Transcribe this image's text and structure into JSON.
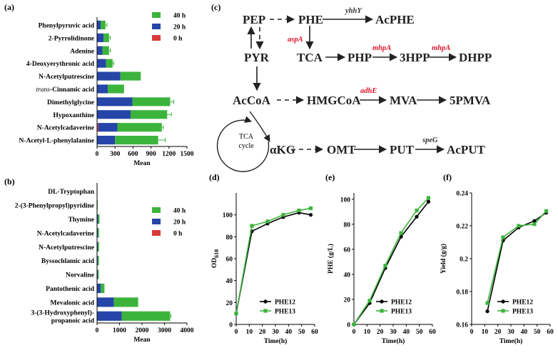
{
  "colors": {
    "c40": "#3cb43c",
    "c20": "#2545a8",
    "c0": "#d93a3a",
    "phe12": "#000000",
    "phe13": "#3cb43c",
    "red_gene": "#e0142a"
  },
  "panel_a": {
    "letter": "(a)",
    "xlabel": "Mean",
    "xticks": [
      0,
      300,
      600,
      900,
      1200,
      1500
    ],
    "xmax": 1500,
    "legend": [
      "40 h",
      "20 h",
      "0 h"
    ],
    "rows": [
      {
        "label": "Phenylpyruvic acid",
        "v0": 0,
        "v20": 60,
        "v40": 80,
        "err": 25
      },
      {
        "label": "2-Pyrrolidinone",
        "v0": 0,
        "v20": 110,
        "v40": 90,
        "err": 20
      },
      {
        "label": "Adenine",
        "v0": 0,
        "v20": 90,
        "v40": 110,
        "err": 25
      },
      {
        "label": "4-Deoxyerythronic acid",
        "v0": 0,
        "v20": 150,
        "v40": 110,
        "err": 20
      },
      {
        "label": "N-Acetylputrescine",
        "v0": 0,
        "v20": 390,
        "v40": 340,
        "err": 0
      },
      {
        "label_italic": "trans",
        "label": "-Cinnamic acid",
        "v0": 0,
        "v20": 180,
        "v40": 270,
        "err": 0
      },
      {
        "label": "Dimethylglycine",
        "v0": 0,
        "v20": 590,
        "v40": 630,
        "err": 60
      },
      {
        "label": "Hypoxanthine",
        "v0": 0,
        "v20": 560,
        "v40": 610,
        "err": 70
      },
      {
        "label": "N-Acetylcadaverine",
        "v0": 20,
        "v20": 320,
        "v40": 740,
        "err": 25
      },
      {
        "label": "N-Acetyl-L-phenylalanine",
        "v0": 0,
        "v20": 300,
        "v40": 720,
        "err": 120
      }
    ]
  },
  "panel_b": {
    "letter": "(b)",
    "xlabel": "Mean",
    "xticks": [
      0,
      1000,
      2000,
      3000,
      4000
    ],
    "xmax": 4000,
    "legend": [
      "40 h",
      "20 h",
      "0 h"
    ],
    "rows": [
      {
        "label": "DL-Tryptophan",
        "v0": 0,
        "v20": 10,
        "v40": 10,
        "err": 0
      },
      {
        "label": "2-(3-Phenylpropyl)pyridine",
        "v0": 0,
        "v20": 15,
        "v40": 15,
        "err": 0
      },
      {
        "label": "Thymine",
        "v0": 0,
        "v20": 50,
        "v40": 60,
        "err": 0
      },
      {
        "label": "N-Acetylcadaverine",
        "v0": 0,
        "v20": 40,
        "v40": 50,
        "err": 0
      },
      {
        "label": "N-Acetylputrescine",
        "v0": 0,
        "v20": 40,
        "v40": 50,
        "err": 0
      },
      {
        "label": "Byssochlamic acid",
        "v0": 0,
        "v20": 40,
        "v40": 45,
        "err": 0
      },
      {
        "label": "Norvaline",
        "v0": 0,
        "v20": 40,
        "v40": 40,
        "err": 0
      },
      {
        "label": "Pantothenic acid",
        "v0": 0,
        "v20": 170,
        "v40": 160,
        "err": 0
      },
      {
        "label": "Mevalonic acid",
        "v0": 0,
        "v20": 750,
        "v40": 1080,
        "err": 0
      },
      {
        "label": "3-(3-Hydroxyphenyl)-",
        "label2": "propanoic acid",
        "v0": 0,
        "v20": 1100,
        "v40": 2150,
        "err": 40
      }
    ]
  },
  "panel_c": {
    "letter": "(c)",
    "nodes": {
      "PEP": "PEP",
      "PHE": "PHE",
      "AcPHE": "AcPHE",
      "PYR": "PYR",
      "TCA": "TCA",
      "PHP": "PHP",
      "3HPP": "3HPP",
      "DHPP": "DHPP",
      "AcCoA": "AcCoA",
      "HMGCoA": "HMGCoA",
      "MVA": "MVA",
      "5PMVA": "5PMVA",
      "aKG": "αKG",
      "OMT": "OMT",
      "PUT": "PUT",
      "AcPUT": "AcPUT"
    },
    "cycle": [
      "TCA",
      "cycle"
    ],
    "genes": {
      "yhhY": "yhhY",
      "aspA": "aspA",
      "mhpA1": "mhpA",
      "mhpA2": "mhpA",
      "adhE": "adhE",
      "speG": "speG"
    }
  },
  "line_panels": [
    {
      "letter": "(d)",
      "ylabel_main": "OD",
      "ylabel_sub": "610",
      "xlabel": "Time(h)",
      "xticks": [
        0,
        10,
        20,
        30,
        40,
        50,
        60
      ],
      "yticks": [
        0,
        20,
        40,
        60,
        80,
        100
      ],
      "xlim": [
        0,
        60
      ],
      "ylim": [
        0,
        120
      ],
      "series": [
        {
          "name": "PHE12",
          "x": [
            0,
            12,
            24,
            36,
            48,
            57
          ],
          "y": [
            10,
            85,
            92,
            98,
            102,
            100
          ]
        },
        {
          "name": "PHE13",
          "x": [
            0,
            12,
            24,
            36,
            48,
            57
          ],
          "y": [
            10,
            90,
            94,
            100,
            104,
            106
          ]
        }
      ]
    },
    {
      "letter": "(e)",
      "ylabel_main": "PHE (g/L)",
      "ylabel_sub": "",
      "xlabel": "Time(h)",
      "xticks": [
        0,
        10,
        20,
        30,
        40,
        50,
        60
      ],
      "yticks": [
        0,
        20,
        40,
        60,
        80,
        100
      ],
      "xlim": [
        0,
        60
      ],
      "ylim": [
        0,
        105
      ],
      "series": [
        {
          "name": "PHE12",
          "x": [
            0,
            12,
            24,
            36,
            48,
            57
          ],
          "y": [
            0,
            17,
            45,
            70,
            86,
            98
          ]
        },
        {
          "name": "PHE13",
          "x": [
            0,
            12,
            24,
            36,
            48,
            57
          ],
          "y": [
            0,
            19,
            47,
            73,
            91,
            101
          ]
        }
      ]
    },
    {
      "letter": "(f)",
      "ylabel_main": "Yield (g/g)",
      "ylabel_sub": "",
      "xlabel": "Time(h)",
      "xticks": [
        0,
        10,
        20,
        30,
        40,
        50,
        60
      ],
      "yticks": [
        0.16,
        0.18,
        0.2,
        0.22,
        0.24
      ],
      "xlim": [
        0,
        60
      ],
      "ylim": [
        0.16,
        0.24
      ],
      "series": [
        {
          "name": "PHE12",
          "x": [
            12,
            24,
            36,
            48,
            57
          ],
          "y": [
            0.168,
            0.211,
            0.219,
            0.223,
            0.228
          ]
        },
        {
          "name": "PHE13",
          "x": [
            12,
            24,
            36,
            48,
            57
          ],
          "y": [
            0.173,
            0.213,
            0.22,
            0.221,
            0.229
          ]
        }
      ]
    }
  ]
}
